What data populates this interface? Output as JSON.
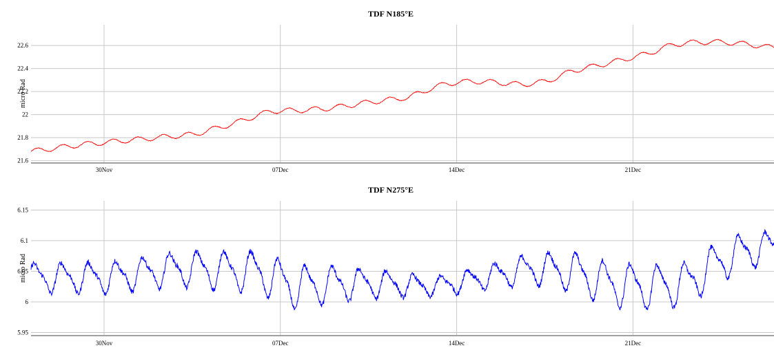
{
  "chart_data": [
    {
      "type": "line",
      "title": "TDF N185°E",
      "ylabel": "micro Rad",
      "x_ticks": [
        "30Nov",
        "07Dec",
        "14Dec",
        "21Dec"
      ],
      "y_ticks": [
        "21.6",
        "21.8",
        "22",
        "22.2",
        "22.4",
        "22.6"
      ],
      "ylim": [
        21.58,
        22.78
      ],
      "xlim_days": [
        0,
        29.5
      ],
      "x_tick_days": [
        2.9,
        9.9,
        16.9,
        23.9
      ],
      "grid": true,
      "series": [
        {
          "color": "#ff0000",
          "trend_days": [
            0,
            2,
            3.5,
            5,
            6.5,
            8,
            9.5,
            11,
            12,
            13.5,
            15,
            15.8,
            16.5,
            17.5,
            18.5,
            19.5,
            20.5,
            21.5,
            23,
            24.5,
            25.5,
            26.5,
            27.5,
            28.5,
            29.5
          ],
          "trend_values": [
            21.68,
            21.74,
            21.77,
            21.8,
            21.83,
            21.92,
            22.03,
            22.04,
            22.06,
            22.11,
            22.15,
            22.22,
            22.27,
            22.29,
            22.28,
            22.26,
            22.29,
            22.38,
            22.45,
            22.53,
            22.61,
            22.63,
            22.63,
            22.61,
            22.58
          ],
          "diurnal_amplitude": 0.022
        }
      ]
    },
    {
      "type": "line",
      "title": "TDF N275°E",
      "ylabel": "micro Rad",
      "x_ticks": [
        "30Nov",
        "07Dec",
        "14Dec",
        "21Dec"
      ],
      "y_ticks": [
        "5.95",
        "6",
        "6.05",
        "6.1",
        "6.15"
      ],
      "ylim": [
        5.945,
        6.165
      ],
      "xlim_days": [
        0,
        29.5
      ],
      "x_tick_days": [
        2.9,
        9.9,
        16.9,
        23.9
      ],
      "grid": true,
      "series": [
        {
          "color": "#0000ff",
          "trend_days": [
            0,
            3,
            6,
            9,
            10.5,
            12,
            14,
            16,
            18,
            20,
            21.5,
            23,
            24.5,
            26,
            27.5,
            28.5,
            29.5
          ],
          "trend_values": [
            6.04,
            6.04,
            6.055,
            6.05,
            6.025,
            6.03,
            6.03,
            6.025,
            6.04,
            6.055,
            6.05,
            6.03,
            6.025,
            6.03,
            6.07,
            6.085,
            6.09
          ],
          "amplitude_days": [
            0,
            5,
            7,
            9,
            10.5,
            13,
            16,
            19,
            21,
            23,
            25,
            27,
            28,
            29.5
          ],
          "amplitude_values": [
            0.028,
            0.032,
            0.036,
            0.04,
            0.042,
            0.03,
            0.018,
            0.026,
            0.036,
            0.042,
            0.042,
            0.04,
            0.036,
            0.03
          ]
        }
      ]
    }
  ]
}
